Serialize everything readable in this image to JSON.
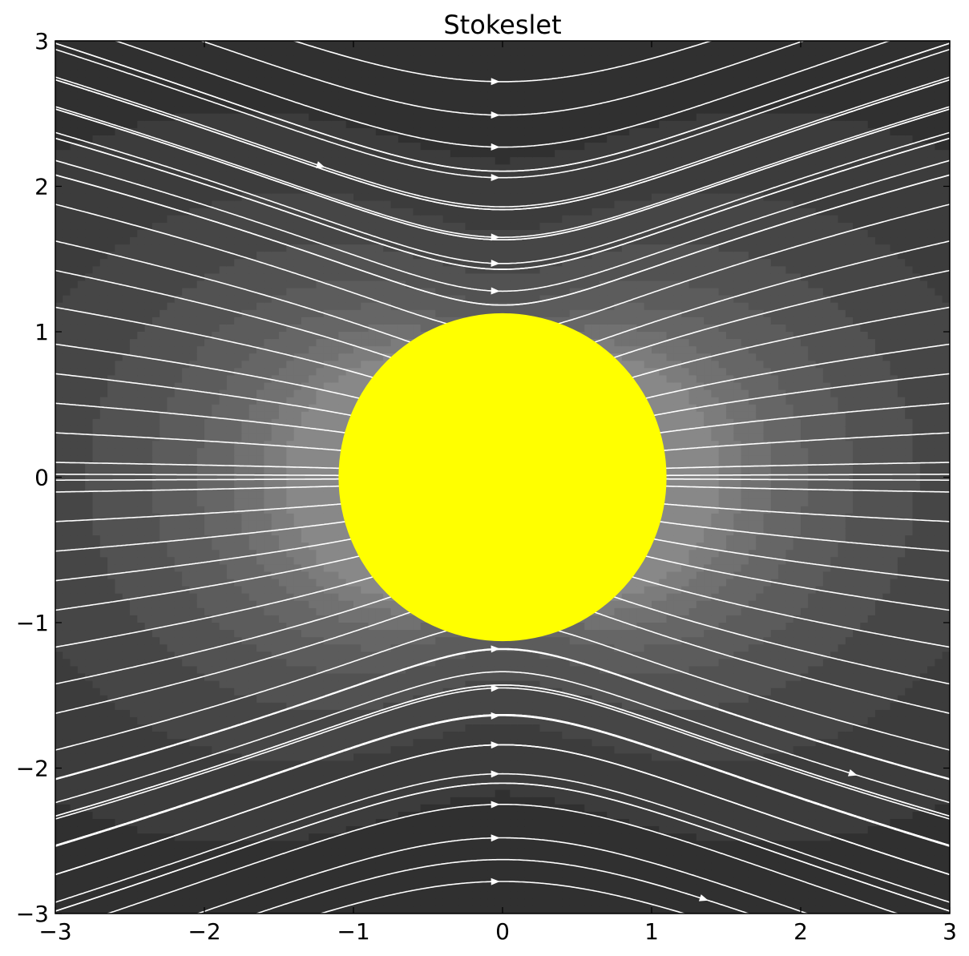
{
  "chart_data": {
    "type": "streamline",
    "title": "Stokeslet",
    "xlabel": "",
    "ylabel": "",
    "xlim": [
      -3,
      3
    ],
    "ylim": [
      -3,
      3
    ],
    "xticks": [
      -3,
      -2,
      -1,
      0,
      1,
      2,
      3
    ],
    "yticks": [
      -3,
      -2,
      -1,
      0,
      1,
      2,
      3
    ],
    "xtick_labels": [
      "−3",
      "−2",
      "−1",
      "0",
      "1",
      "2",
      "3"
    ],
    "ytick_labels": [
      "−3",
      "−2",
      "−1",
      "0",
      "1",
      "2",
      "3"
    ],
    "grid": false,
    "background_colormap": "gray",
    "streamline_color": "#ffffff",
    "obstacle": {
      "shape": "circle",
      "center": [
        0,
        0
      ],
      "radius": 1.1,
      "color": "#ffff00"
    },
    "flow_direction": "left-to-right"
  }
}
